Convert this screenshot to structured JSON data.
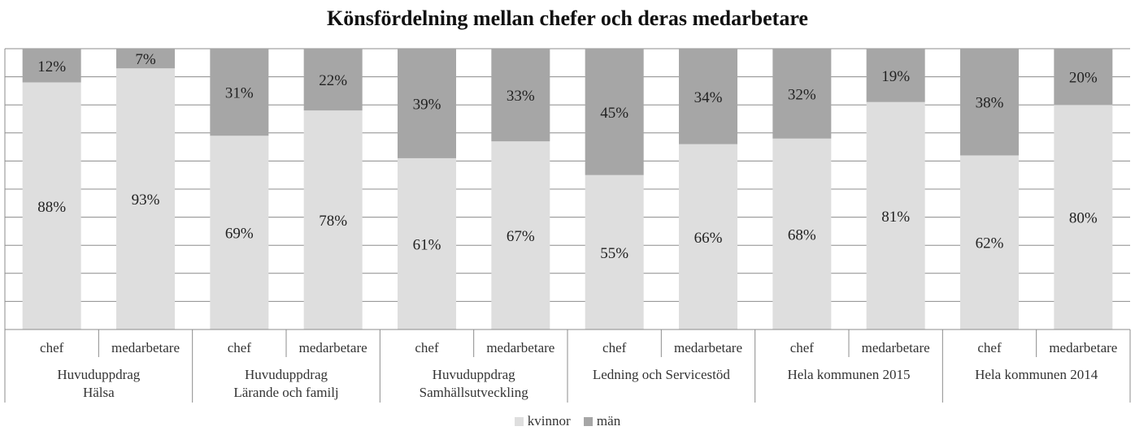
{
  "chart_data": {
    "type": "bar",
    "stacked": true,
    "percent_stacked": true,
    "title": "Könsfördelning mellan chefer och deras medarbetare",
    "groups": [
      "Huvuduppdrag\nHälsa",
      "Huvuduppdrag\nLärande och familj",
      "Huvuduppdrag\nSamhällsutveckling",
      "Ledning och Servicestöd",
      "Hela kommunen 2015",
      "Hela kommunen 2014"
    ],
    "categories": [
      "chef",
      "medarbetare",
      "chef",
      "medarbetare",
      "chef",
      "medarbetare",
      "chef",
      "medarbetare",
      "chef",
      "medarbetare",
      "chef",
      "medarbetare"
    ],
    "series": [
      {
        "name": "kvinnor",
        "color": "#dedede",
        "values": [
          88,
          93,
          69,
          78,
          61,
          67,
          55,
          66,
          68,
          81,
          62,
          80
        ]
      },
      {
        "name": "män",
        "color": "#a6a6a6",
        "values": [
          12,
          7,
          31,
          22,
          39,
          33,
          45,
          34,
          32,
          19,
          38,
          20
        ]
      }
    ],
    "data_labels": [
      [
        "88%",
        "93%",
        "69%",
        "78%",
        "61%",
        "67%",
        "55%",
        "66%",
        "68%",
        "81%",
        "62%",
        "80%"
      ],
      [
        "12%",
        "7%",
        "31%",
        "22%",
        "39%",
        "33%",
        "45%",
        "34%",
        "32%",
        "19%",
        "38%",
        "20%"
      ]
    ],
    "ylim": [
      0,
      100
    ],
    "grid": true,
    "legend_position": "bottom"
  }
}
